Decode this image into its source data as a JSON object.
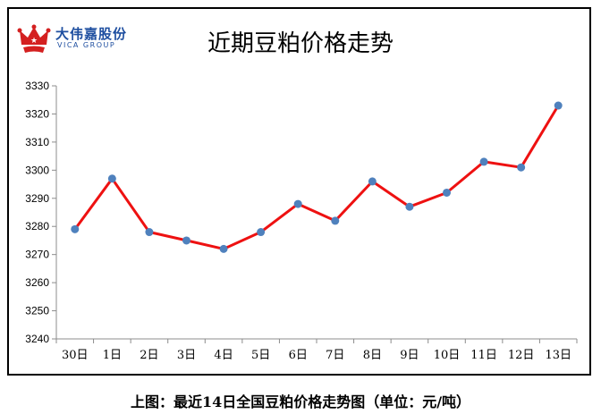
{
  "brand": {
    "name_cn": "大伟嘉股份",
    "name_en": "VICA GROUP"
  },
  "caption": "上图：最近14日全国豆粕价格走势图（单位：元/吨）",
  "colors": {
    "line": "#ee1111",
    "marker": "#4f81bd",
    "logo": "#1f4fa0",
    "logo_crown": "#d42020"
  },
  "chart_data": {
    "type": "line",
    "title": "近期豆粕价格走势",
    "xlabel": "",
    "ylabel": "",
    "categories": [
      "30日",
      "1日",
      "2日",
      "3日",
      "4日",
      "5日",
      "6日",
      "7日",
      "8日",
      "9日",
      "10日",
      "11日",
      "12日",
      "13日"
    ],
    "series": [
      {
        "values": [
          3279,
          3297,
          3278,
          3275,
          3272,
          3278,
          3288,
          3282,
          3296,
          3287,
          3292,
          3303,
          3301,
          3323
        ]
      }
    ],
    "ylim": [
      3240,
      3330
    ],
    "yticks": [
      3240,
      3250,
      3260,
      3270,
      3280,
      3290,
      3300,
      3310,
      3320,
      3330
    ],
    "grid": false,
    "legend": "none"
  }
}
